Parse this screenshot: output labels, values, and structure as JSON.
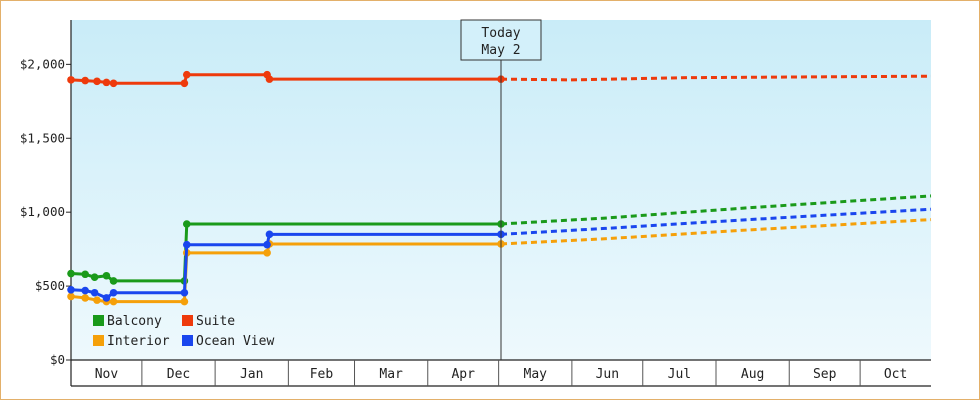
{
  "chart_data": {
    "type": "line",
    "currency_prefix": "$",
    "ylim": [
      0,
      2300
    ],
    "yticks": [
      0,
      500,
      1000,
      1500,
      2000
    ],
    "ytick_labels": [
      "$0",
      "$500",
      "$1,000",
      "$1,500",
      "$2,000"
    ],
    "xlim": [
      "2024-11-01",
      "2025-10-31"
    ],
    "months": [
      {
        "label": "Nov",
        "start": "2024-11-01",
        "end": "2024-12-01"
      },
      {
        "label": "Dec",
        "start": "2024-12-01",
        "end": "2025-01-01"
      },
      {
        "label": "Jan",
        "start": "2025-01-01",
        "end": "2025-02-01"
      },
      {
        "label": "Feb",
        "start": "2025-02-01",
        "end": "2025-03-01"
      },
      {
        "label": "Mar",
        "start": "2025-03-01",
        "end": "2025-04-01"
      },
      {
        "label": "Apr",
        "start": "2025-04-01",
        "end": "2025-05-01"
      },
      {
        "label": "May",
        "start": "2025-05-01",
        "end": "2025-06-01"
      },
      {
        "label": "Jun",
        "start": "2025-06-01",
        "end": "2025-07-01"
      },
      {
        "label": "Jul",
        "start": "2025-07-01",
        "end": "2025-08-01"
      },
      {
        "label": "Aug",
        "start": "2025-08-01",
        "end": "2025-09-01"
      },
      {
        "label": "Sep",
        "start": "2025-09-01",
        "end": "2025-10-01"
      },
      {
        "label": "Oct",
        "start": "2025-10-01",
        "end": "2025-10-31"
      }
    ],
    "today": {
      "label": "Today",
      "date_label": "May 2",
      "date": "2025-05-02"
    },
    "grid": false,
    "legend_position": "bottom-left",
    "series": [
      {
        "name": "Balcony",
        "color": "#1a9a1a",
        "history": [
          [
            "2024-11-01",
            585
          ],
          [
            "2024-11-07",
            580
          ],
          [
            "2024-11-11",
            560
          ],
          [
            "2024-11-16",
            570
          ],
          [
            "2024-11-19",
            535
          ],
          [
            "2024-12-19",
            535
          ],
          [
            "2024-12-20",
            920
          ],
          [
            "2025-05-02",
            920
          ]
        ],
        "forecast": [
          [
            "2025-05-02",
            920
          ],
          [
            "2025-06-15",
            960
          ],
          [
            "2025-08-15",
            1030
          ],
          [
            "2025-10-31",
            1110
          ]
        ]
      },
      {
        "name": "Suite",
        "color": "#ee3a0c",
        "history": [
          [
            "2024-11-01",
            1895
          ],
          [
            "2024-11-07",
            1890
          ],
          [
            "2024-11-12",
            1885
          ],
          [
            "2024-11-16",
            1878
          ],
          [
            "2024-11-19",
            1872
          ],
          [
            "2024-12-19",
            1872
          ],
          [
            "2024-12-20",
            1930
          ],
          [
            "2025-01-23",
            1930
          ],
          [
            "2025-01-24",
            1900
          ],
          [
            "2025-05-02",
            1900
          ]
        ],
        "forecast": [
          [
            "2025-05-02",
            1900
          ],
          [
            "2025-06-01",
            1895
          ],
          [
            "2025-07-20",
            1910
          ],
          [
            "2025-10-31",
            1920
          ]
        ]
      },
      {
        "name": "Interior",
        "color": "#f5a00a",
        "history": [
          [
            "2024-11-01",
            430
          ],
          [
            "2024-11-07",
            420
          ],
          [
            "2024-11-12",
            405
          ],
          [
            "2024-11-16",
            395
          ],
          [
            "2024-11-19",
            395
          ],
          [
            "2024-12-19",
            395
          ],
          [
            "2024-12-20",
            725
          ],
          [
            "2025-01-23",
            725
          ],
          [
            "2025-01-24",
            785
          ],
          [
            "2025-05-02",
            785
          ]
        ],
        "forecast": [
          [
            "2025-05-02",
            785
          ],
          [
            "2025-06-15",
            820
          ],
          [
            "2025-08-15",
            880
          ],
          [
            "2025-10-31",
            950
          ]
        ]
      },
      {
        "name": "Ocean View",
        "color": "#1a46ee",
        "history": [
          [
            "2024-11-01",
            475
          ],
          [
            "2024-11-07",
            470
          ],
          [
            "2024-11-11",
            455
          ],
          [
            "2024-11-16",
            420
          ],
          [
            "2024-11-19",
            455
          ],
          [
            "2024-12-19",
            455
          ],
          [
            "2024-12-20",
            780
          ],
          [
            "2025-01-23",
            780
          ],
          [
            "2025-01-24",
            850
          ],
          [
            "2025-05-02",
            850
          ]
        ],
        "forecast": [
          [
            "2025-05-02",
            850
          ],
          [
            "2025-06-15",
            890
          ],
          [
            "2025-08-15",
            950
          ],
          [
            "2025-10-31",
            1020
          ]
        ]
      }
    ],
    "legend_order": [
      "Balcony",
      "Suite",
      "Interior",
      "Ocean View"
    ]
  }
}
